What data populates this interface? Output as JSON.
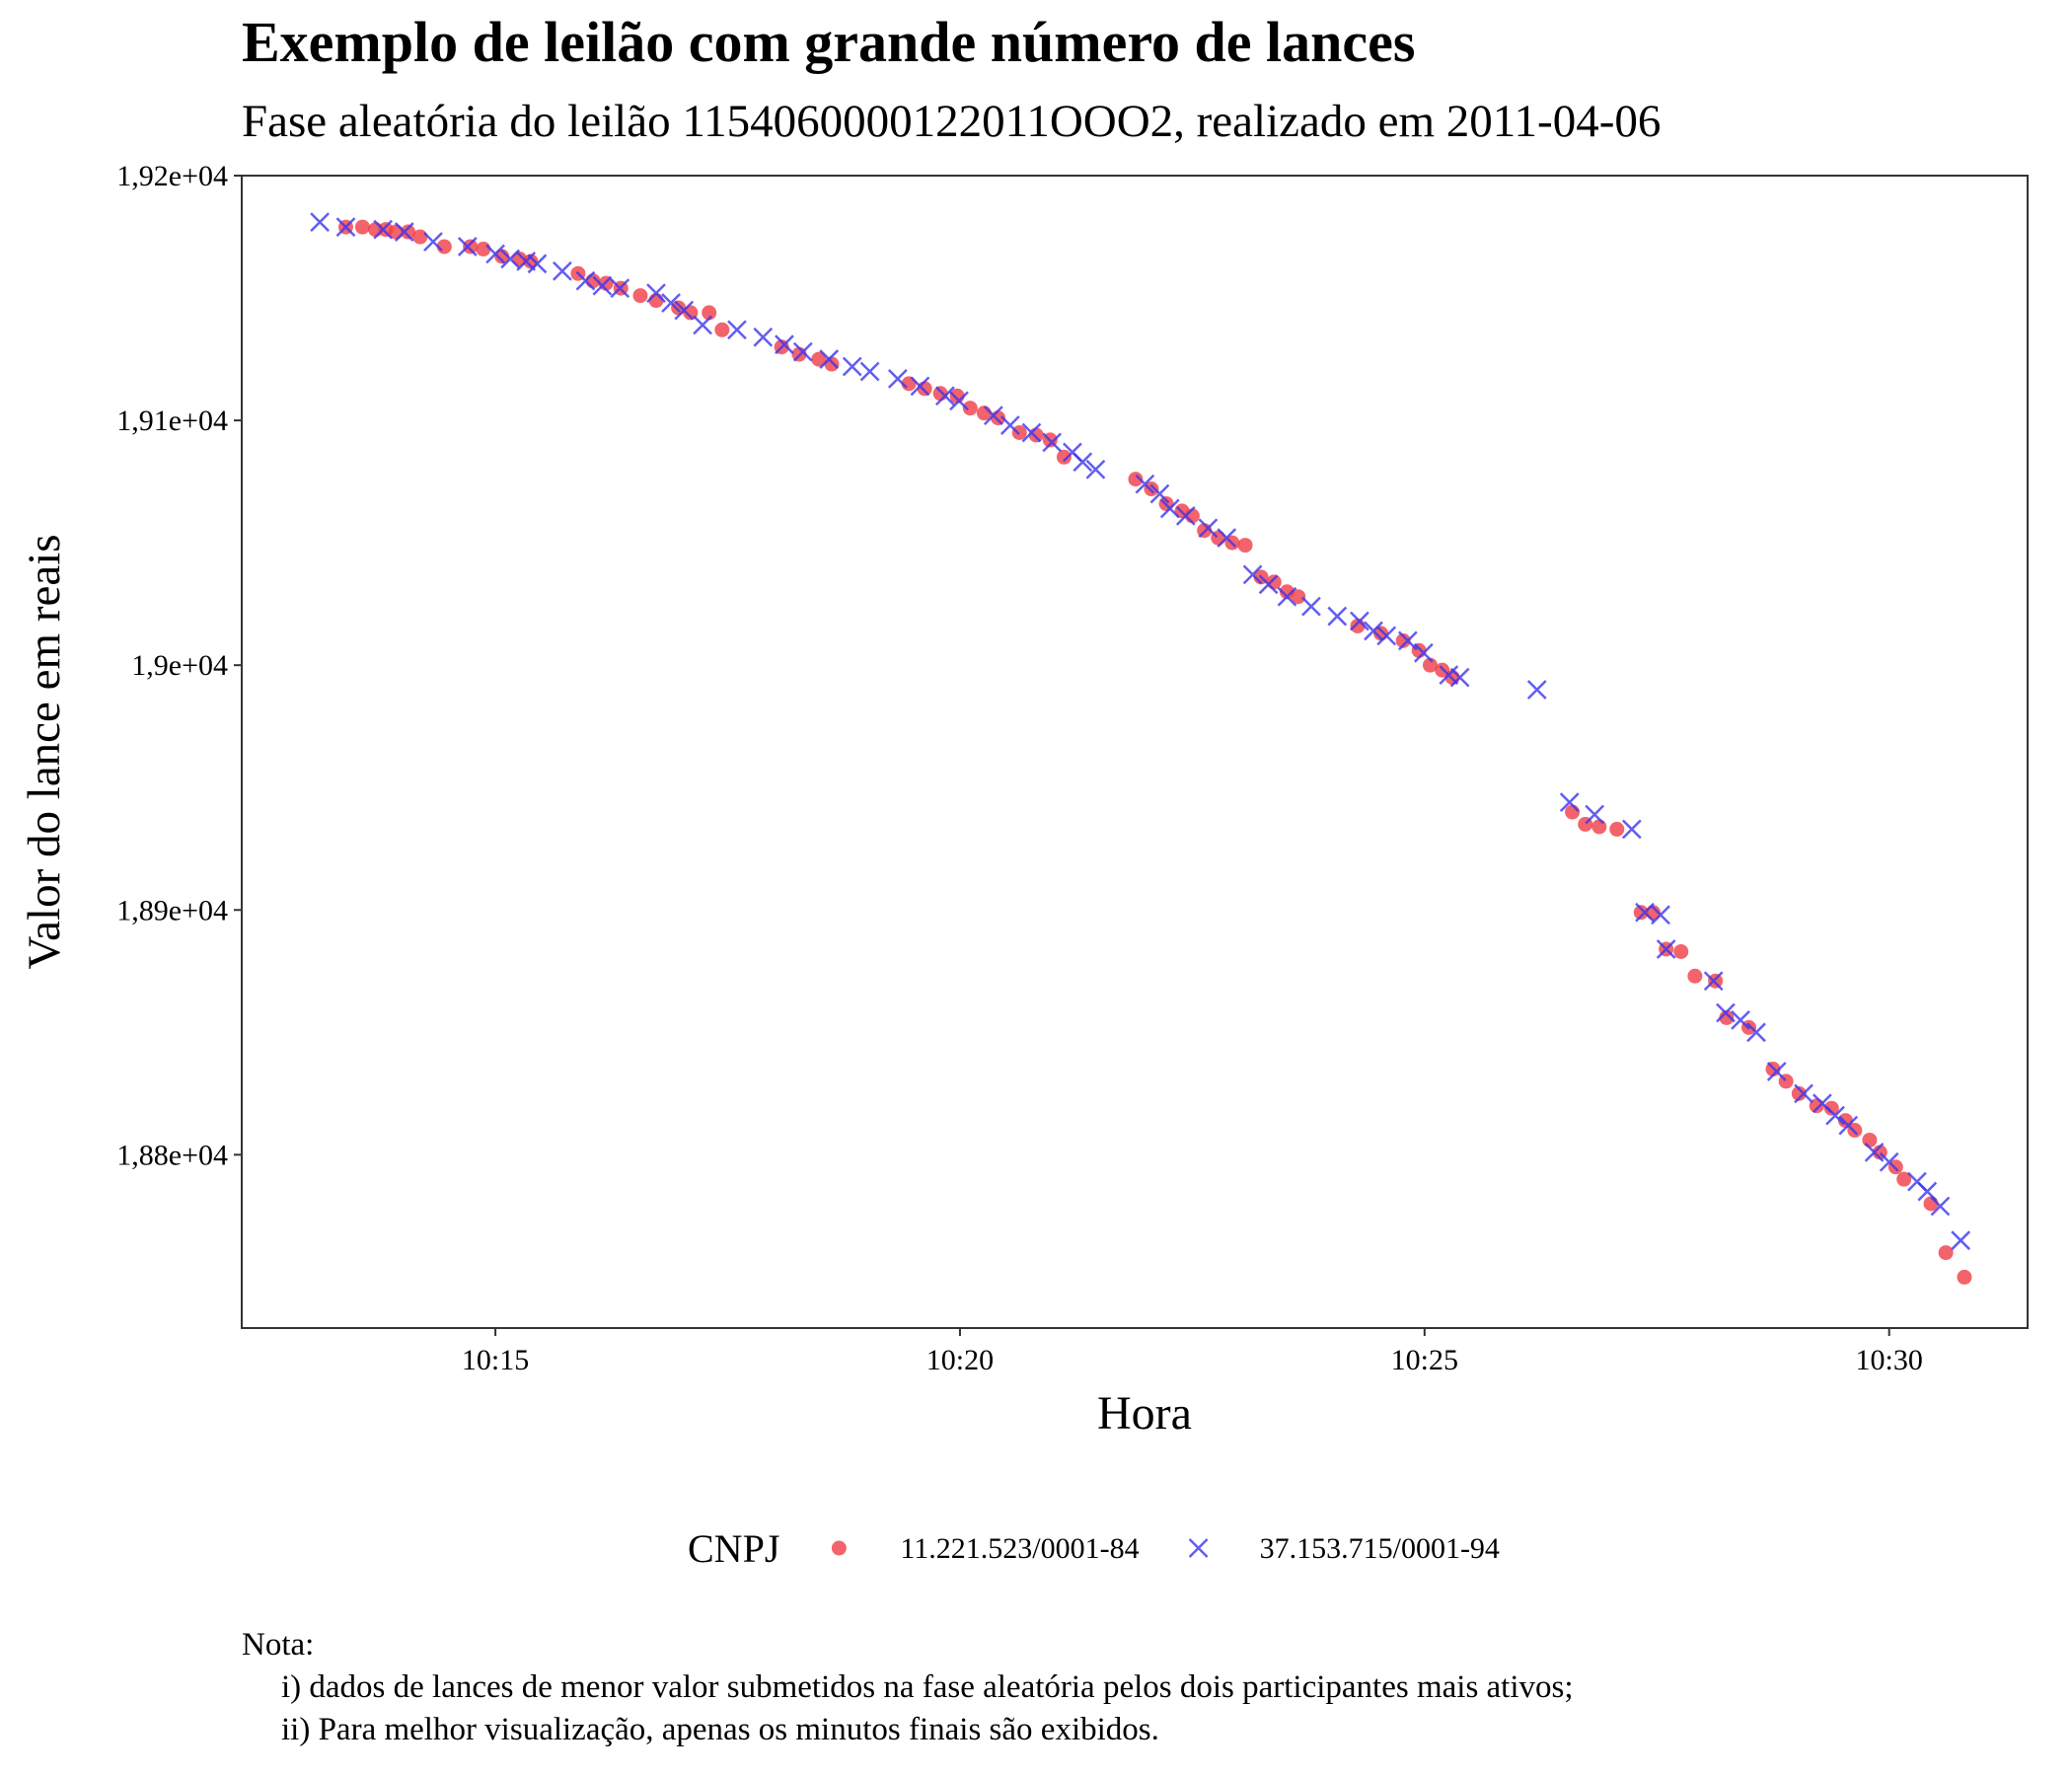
{
  "chart_data": {
    "type": "scatter",
    "title": "Exemplo de leilão com grande número de lances",
    "subtitle": "Fase aleatória do leilão 1154060000122011OOO2, realizado em 2011-04-06",
    "xlabel": "Hora",
    "ylabel": "Valor do lance em reais",
    "legend_title": "CNPJ",
    "legend_position": "bottom",
    "grid": false,
    "xlim": [
      612.27,
      631.49
    ],
    "ylim": [
      18729.2,
      19200
    ],
    "xticks": [
      {
        "value": 615,
        "label": "10:15"
      },
      {
        "value": 620,
        "label": "10:20"
      },
      {
        "value": 625,
        "label": "10:25"
      },
      {
        "value": 630,
        "label": "10:30"
      }
    ],
    "yticks": [
      {
        "value": 18800,
        "label": "1,88e+04"
      },
      {
        "value": 18900,
        "label": "1,89e+04"
      },
      {
        "value": 19000,
        "label": "1,9e+04"
      },
      {
        "value": 19100,
        "label": "1,91e+04"
      },
      {
        "value": 19200,
        "label": "1,92e+04"
      }
    ],
    "series": [
      {
        "name": "11.221.523/0001-84",
        "color": "#f03c46",
        "marker": "circle",
        "x": [
          613.39,
          613.57,
          613.71,
          613.82,
          613.93,
          614.06,
          614.19,
          614.45,
          614.73,
          614.87,
          615.07,
          615.26,
          615.38,
          615.89,
          616.05,
          616.19,
          616.35,
          616.56,
          616.73,
          616.97,
          617.1,
          617.3,
          617.44,
          618.08,
          618.27,
          618.48,
          618.62,
          619.45,
          619.62,
          619.79,
          619.97,
          620.11,
          620.26,
          620.41,
          620.64,
          620.82,
          620.97,
          621.12,
          621.89,
          622.06,
          622.22,
          622.39,
          622.5,
          622.63,
          622.78,
          622.93,
          623.07,
          623.24,
          623.38,
          623.52,
          623.64,
          624.28,
          624.53,
          624.77,
          624.94,
          625.06,
          625.19,
          625.3,
          626.59,
          626.73,
          626.88,
          627.07,
          627.33,
          627.46,
          627.6,
          627.76,
          627.91,
          628.13,
          628.25,
          628.49,
          628.75,
          628.89,
          629.03,
          629.22,
          629.38,
          629.53,
          629.63,
          629.79,
          629.9,
          630.07,
          630.16,
          630.45,
          630.61,
          630.81
        ],
        "values": [
          19179,
          19179,
          19178,
          19178,
          19177,
          19177,
          19175,
          19171,
          19171,
          19170,
          19167,
          19166,
          19165,
          19160,
          19157,
          19156,
          19154,
          19151,
          19149,
          19146,
          19144,
          19144,
          19137,
          19130,
          19127,
          19125,
          19123,
          19115,
          19113,
          19111,
          19110,
          19105,
          19103,
          19101,
          19095,
          19094,
          19092,
          19085,
          19076,
          19072,
          19066,
          19063,
          19061,
          19055,
          19052,
          19050,
          19049,
          19036,
          19034,
          19030,
          19028,
          19016,
          19013,
          19010,
          19006,
          19000,
          18998,
          18995,
          18940,
          18935,
          18934,
          18933,
          18899,
          18899,
          18884,
          18883,
          18873,
          18871,
          18856,
          18852,
          18835,
          18830,
          18825,
          18820,
          18819,
          18814,
          18810,
          18806,
          18801,
          18795,
          18790,
          18780,
          18760,
          18750
        ]
      },
      {
        "name": "37.153.715/0001-94",
        "color": "#3b35f0",
        "marker": "cross",
        "x": [
          613.11,
          613.39,
          613.79,
          614.02,
          614.33,
          614.7,
          615.0,
          615.16,
          615.33,
          615.45,
          615.72,
          615.97,
          616.15,
          616.34,
          616.73,
          616.89,
          617.03,
          617.23,
          617.6,
          617.88,
          618.11,
          618.31,
          618.59,
          618.84,
          619.03,
          619.33,
          619.57,
          619.84,
          619.99,
          620.36,
          620.54,
          620.77,
          620.99,
          621.21,
          621.32,
          621.46,
          621.99,
          622.15,
          622.26,
          622.43,
          622.67,
          622.87,
          623.15,
          623.32,
          623.52,
          623.78,
          624.06,
          624.3,
          624.45,
          624.59,
          624.82,
          624.99,
          625.26,
          625.38,
          626.21,
          626.56,
          626.83,
          627.23,
          627.37,
          627.54,
          627.6,
          628.11,
          628.24,
          628.4,
          628.57,
          628.79,
          629.08,
          629.28,
          629.42,
          629.56,
          629.84,
          630.0,
          630.3,
          630.41,
          630.55,
          630.77
        ],
        "values": [
          19181,
          19179,
          19178,
          19177,
          19173,
          19171,
          19168,
          19166,
          19165,
          19164,
          19161,
          19157,
          19155,
          19154,
          19152,
          19148,
          19145,
          19139,
          19137,
          19134,
          19131,
          19128,
          19125,
          19122,
          19120,
          19117,
          19114,
          19110,
          19108,
          19102,
          19098,
          19095,
          19091,
          19087,
          19083,
          19080,
          19074,
          19070,
          19064,
          19061,
          19056,
          19052,
          19037,
          19033,
          19028,
          19024,
          19020,
          19018,
          19014,
          19012,
          19010,
          19005,
          18996,
          18995,
          18990,
          18944,
          18939,
          18933,
          18899,
          18898,
          18884,
          18871,
          18858,
          18855,
          18850,
          18834,
          18825,
          18821,
          18816,
          18812,
          18801,
          18797,
          18789,
          18785,
          18779,
          18765
        ]
      }
    ],
    "notes": [
      "Nota:",
      "i) dados de lances de menor valor submetidos na fase aleatória pelos dois participantes mais ativos;",
      "ii) Para melhor visualização, apenas os minutos finais são exibidos."
    ]
  }
}
